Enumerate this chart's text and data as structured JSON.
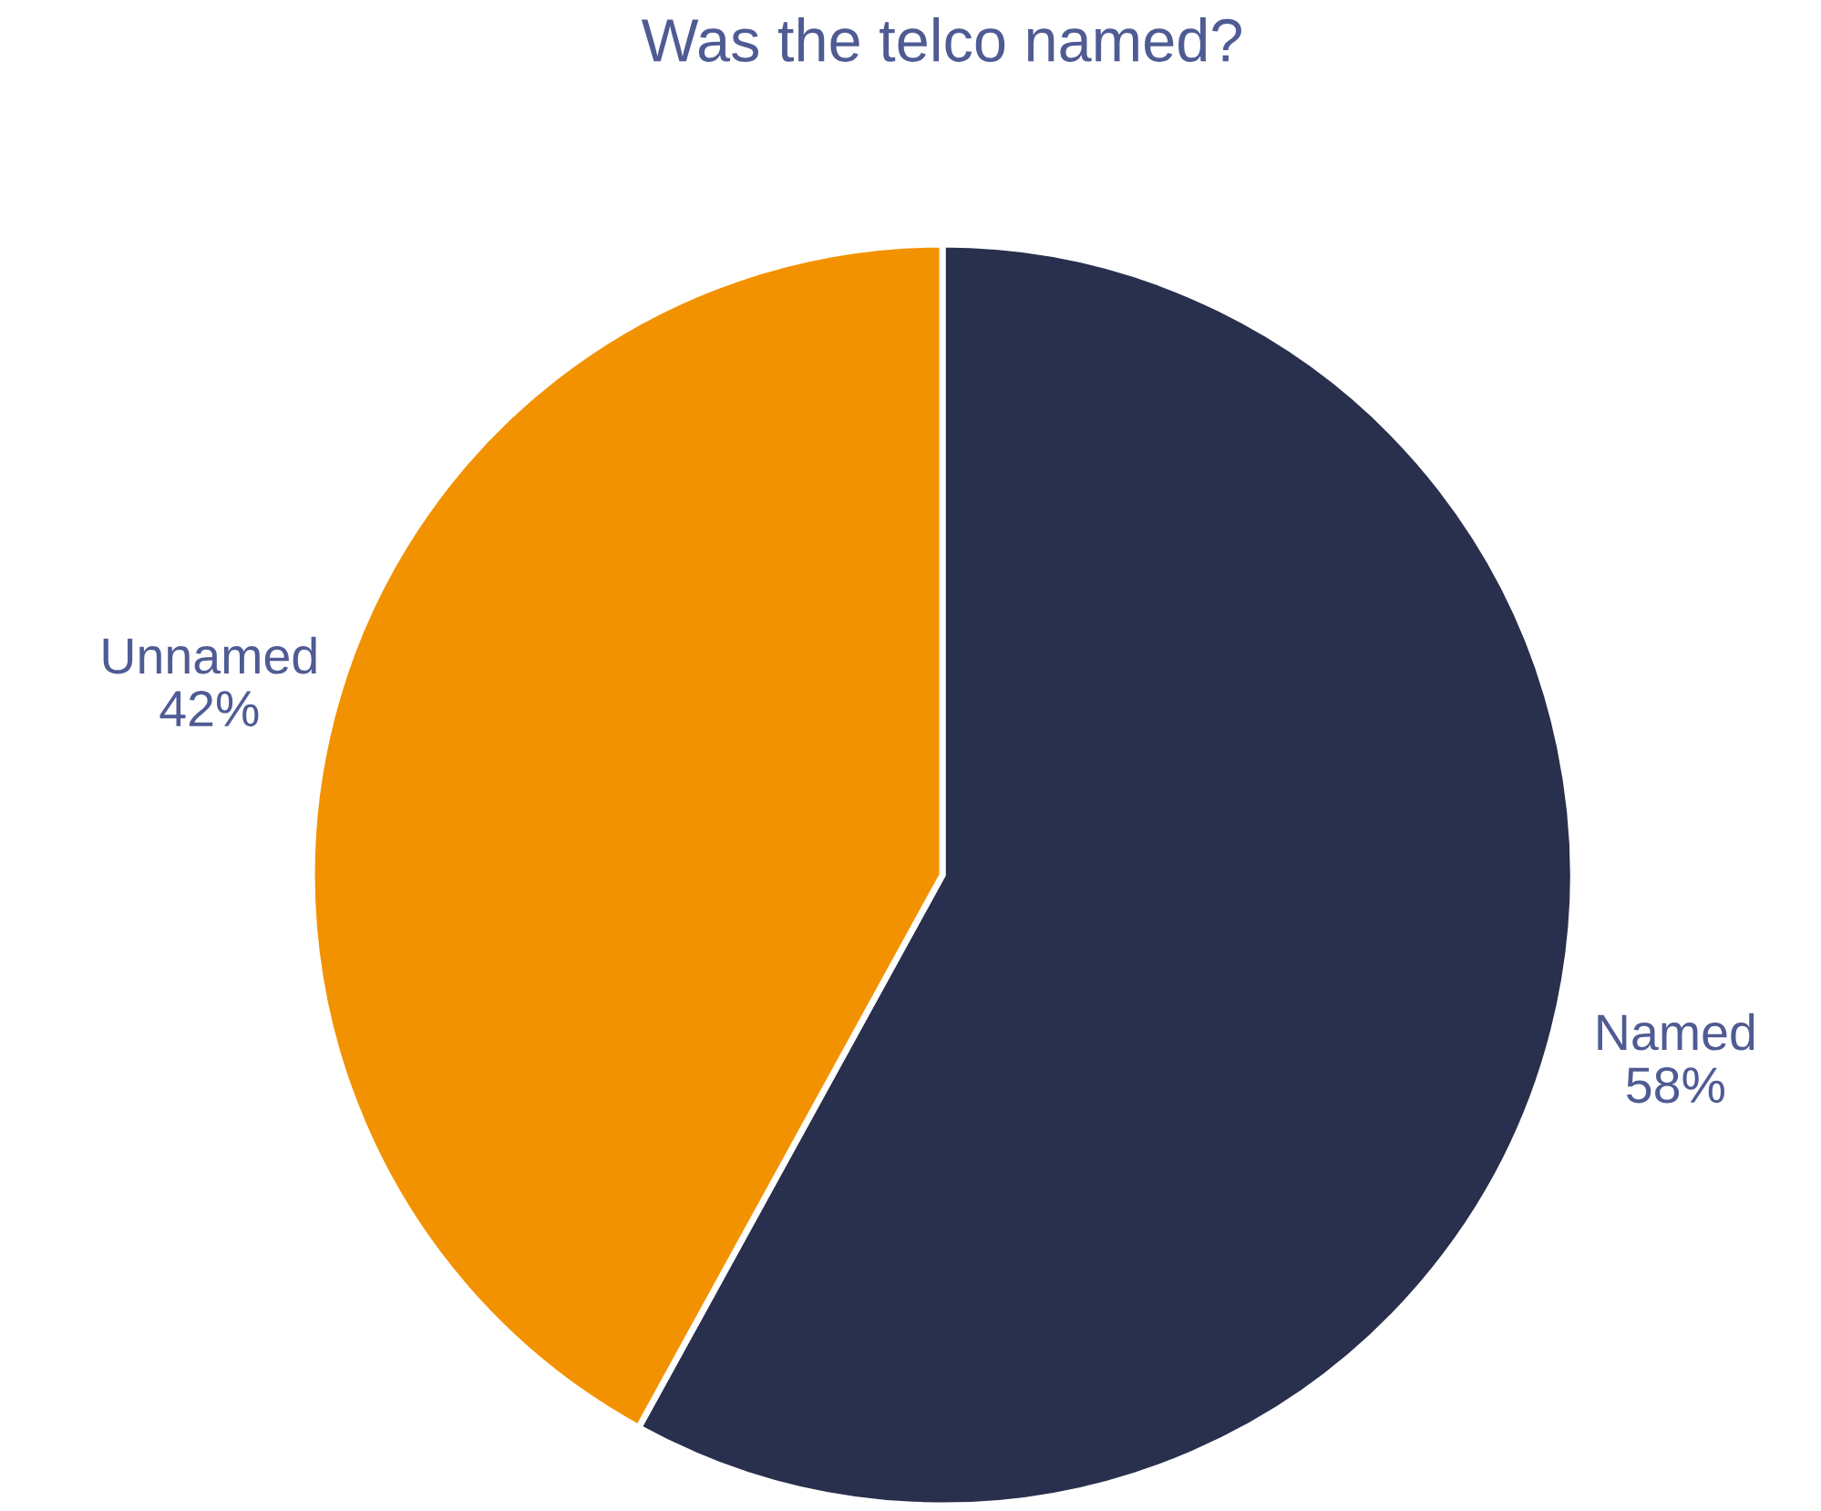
{
  "chart_data": {
    "type": "pie",
    "title": "Was the telco named?",
    "categories": [
      "Named",
      "Unnamed"
    ],
    "values": [
      58,
      42
    ],
    "value_labels": [
      "58%",
      "42%"
    ],
    "colors": [
      "#29304d",
      "#f39200"
    ],
    "legend": false
  }
}
